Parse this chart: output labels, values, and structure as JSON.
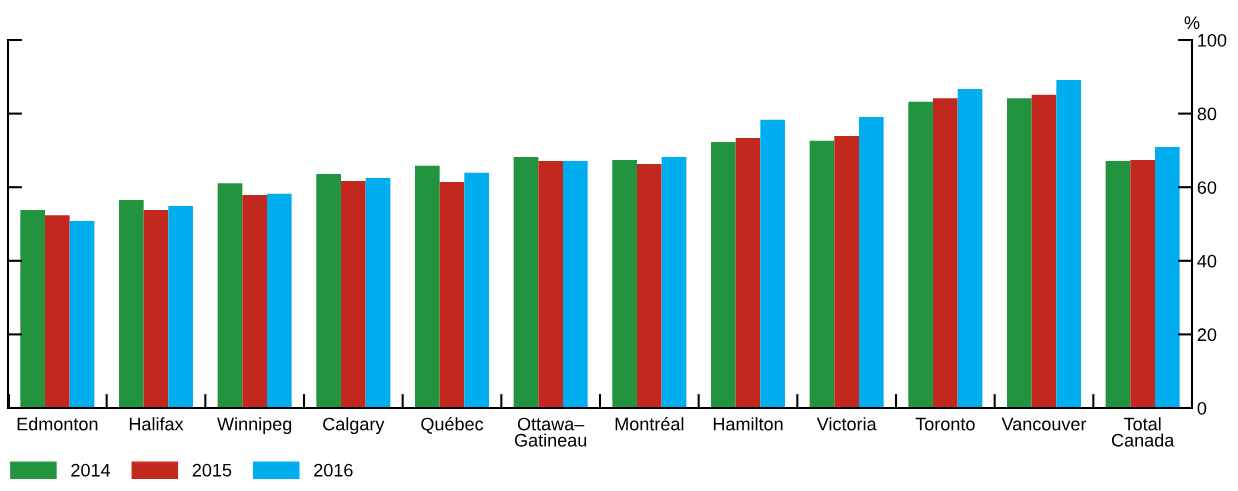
{
  "chart_data": {
    "type": "bar",
    "ylabel": "%",
    "categories": [
      "Edmonton",
      "Halifax",
      "Winnipeg",
      "Calgary",
      "Québec",
      "Ottawa–\nGatineau",
      "Montréal",
      "Hamilton",
      "Victoria",
      "Toronto",
      "Vancouver",
      "Total\nCanada"
    ],
    "series": [
      {
        "name": "2014",
        "color": "#229440",
        "values": [
          53.8,
          56.5,
          61.1,
          63.6,
          65.8,
          68.2,
          67.4,
          72.3,
          72.6,
          83.2,
          84.2,
          67.1
        ]
      },
      {
        "name": "2015",
        "color": "#c3281e",
        "values": [
          52.4,
          53.8,
          57.9,
          61.7,
          61.4,
          67.1,
          66.3,
          73.4,
          73.9,
          84.2,
          85.1,
          67.4
        ]
      },
      {
        "name": "2016",
        "color": "#00aeef",
        "values": [
          50.8,
          54.9,
          58.2,
          62.5,
          63.9,
          67.1,
          68.2,
          78.3,
          79.1,
          86.7,
          89.1,
          70.9
        ]
      }
    ],
    "ylim": [
      0,
      100
    ],
    "yticks": [
      0,
      20,
      40,
      60,
      80,
      100
    ],
    "legend": "bottom",
    "grid": false
  }
}
